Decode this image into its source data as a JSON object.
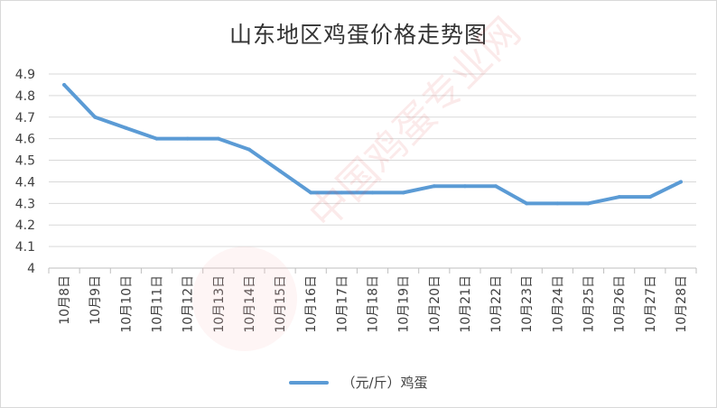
{
  "chart_data": {
    "type": "line",
    "title": "山东地区鸡蛋价格走势图",
    "categories": [
      "10月8日",
      "10月9日",
      "10月10日",
      "10月11日",
      "10月12日",
      "10月13日",
      "10月14日",
      "10月15日",
      "10月16日",
      "10月17日",
      "10月18日",
      "10月19日",
      "10月20日",
      "10月21日",
      "10月22日",
      "10月23日",
      "10月24日",
      "10月25日",
      "10月26日",
      "10月27日",
      "10月28日"
    ],
    "series": [
      {
        "name": "（元/斤）鸡蛋",
        "values": [
          4.85,
          4.7,
          4.65,
          4.6,
          4.6,
          4.6,
          4.55,
          4.45,
          4.35,
          4.35,
          4.35,
          4.35,
          4.38,
          4.38,
          4.38,
          4.3,
          4.3,
          4.3,
          4.33,
          4.33,
          4.4
        ]
      }
    ],
    "ylim": [
      4,
      4.9
    ],
    "yticks": [
      "4",
      "4.1",
      "4.2",
      "4.3",
      "4.4",
      "4.5",
      "4.6",
      "4.7",
      "4.8",
      "4.9"
    ],
    "grid": true,
    "legend": "bottom",
    "colors": {
      "line": "#5B9BD5",
      "grid": "#d9d9d9",
      "axis": "#bfbfbf",
      "text": "#404040"
    }
  },
  "watermark": "中国鸡蛋专业网"
}
